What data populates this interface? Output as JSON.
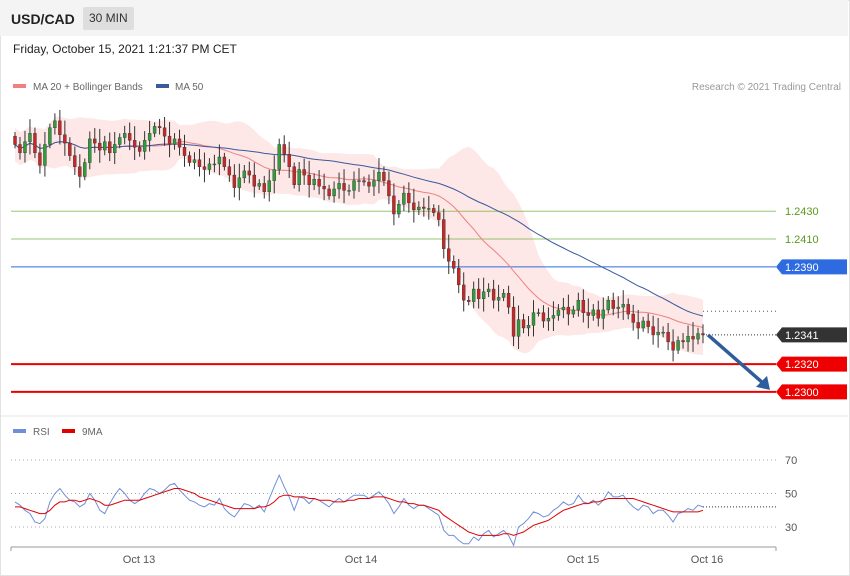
{
  "header": {
    "symbol": "USD/CAD",
    "timeframe": "30 MIN",
    "timestamp": "Friday, October 15, 2021 1:21:37 PM CET",
    "credit": "Research © 2021 Trading Central"
  },
  "legend": {
    "ma20": {
      "label": "MA 20 + Bollinger Bands",
      "color": "#f08080"
    },
    "ma50": {
      "label": "MA 50",
      "color": "#3a5a9c"
    },
    "rsi": {
      "label": "RSI",
      "color": "#6f8fd8"
    },
    "ma9": {
      "label": "9MA",
      "color": "#e00000"
    }
  },
  "chart_data": {
    "type": "candlestick",
    "price_range": [
      1.2287,
      1.251
    ],
    "x_labels": [
      "Oct 13",
      "Oct 14",
      "Oct 15",
      "Oct 16"
    ],
    "levels": [
      {
        "value": "1.2430",
        "price": 1.243,
        "kind": "resistance",
        "color": "#77b242"
      },
      {
        "value": "1.2410",
        "price": 1.241,
        "kind": "resistance",
        "color": "#77b242"
      },
      {
        "value": "1.2390",
        "price": 1.239,
        "kind": "pivot",
        "color": "#2f6be0"
      },
      {
        "value": "1.2341",
        "price": 1.2341,
        "kind": "last",
        "color": "#333333"
      },
      {
        "value": "1.2320",
        "price": 1.232,
        "kind": "target",
        "color": "#ee0000"
      },
      {
        "value": "1.2300",
        "price": 1.23,
        "kind": "target",
        "color": "#ee0000"
      }
    ],
    "closes": [
      1.2478,
      1.2472,
      1.248,
      1.2486,
      1.2472,
      1.2463,
      1.2478,
      1.249,
      1.2495,
      1.2485,
      1.2479,
      1.247,
      1.2462,
      1.2455,
      1.2465,
      1.2482,
      1.2479,
      1.2474,
      1.248,
      1.2472,
      1.2478,
      1.2483,
      1.2486,
      1.2481,
      1.2476,
      1.2473,
      1.2481,
      1.2486,
      1.2491,
      1.249,
      1.2484,
      1.2478,
      1.2482,
      1.2476,
      1.247,
      1.2465,
      1.2467,
      1.2462,
      1.246,
      1.2464,
      1.2464,
      1.2469,
      1.2462,
      1.2456,
      1.2447,
      1.2454,
      1.2459,
      1.2456,
      1.2448,
      1.245,
      1.2444,
      1.2452,
      1.246,
      1.2478,
      1.2471,
      1.2462,
      1.2449,
      1.246,
      1.2456,
      1.2449,
      1.2453,
      1.2448,
      1.2446,
      1.2441,
      1.2446,
      1.245,
      1.2445,
      1.2445,
      1.2452,
      1.2452,
      1.2451,
      1.2448,
      1.2452,
      1.2458,
      1.2452,
      1.2441,
      1.2428,
      1.2435,
      1.2443,
      1.2436,
      1.2431,
      1.2433,
      1.2432,
      1.2432,
      1.2429,
      1.2424,
      1.2403,
      1.2394,
      1.2389,
      1.2377,
      1.2366,
      1.2365,
      1.2374,
      1.2367,
      1.2372,
      1.2374,
      1.2366,
      1.2368,
      1.2371,
      1.2361,
      1.234,
      1.2352,
      1.2346,
      1.2348,
      1.2357,
      1.2357,
      1.2351,
      1.2353,
      1.2355,
      1.2359,
      1.2361,
      1.2356,
      1.2359,
      1.2366,
      1.2357,
      1.2355,
      1.2359,
      1.2353,
      1.2359,
      1.2366,
      1.236,
      1.2361,
      1.2363,
      1.2356,
      1.235,
      1.2346,
      1.2351,
      1.2347,
      1.2341,
      1.2343,
      1.2343,
      1.2336,
      1.233,
      1.2337,
      1.2336,
      1.234,
      1.2338,
      1.2342,
      1.2341
    ],
    "rsi": {
      "range": [
        10,
        80
      ],
      "ticks": [
        "70",
        "50",
        "30"
      ],
      "tick_values": [
        70,
        50,
        30
      ],
      "values": [
        45,
        43,
        40,
        38,
        33,
        32,
        35,
        45,
        50,
        53,
        49,
        46,
        45,
        42,
        44,
        50,
        46,
        40,
        38,
        44,
        49,
        53,
        50,
        46,
        44,
        46,
        50,
        53,
        52,
        50,
        52,
        55,
        56,
        52,
        49,
        46,
        45,
        43,
        42,
        44,
        43,
        47,
        41,
        38,
        36,
        40,
        44,
        43,
        41,
        43,
        39,
        47,
        54,
        61,
        54,
        48,
        40,
        48,
        47,
        44,
        47,
        46,
        44,
        42,
        45,
        47,
        45,
        47,
        49,
        49,
        49,
        47,
        49,
        51,
        48,
        44,
        38,
        42,
        47,
        43,
        41,
        43,
        43,
        41,
        39,
        37,
        28,
        25,
        25,
        22,
        20,
        20,
        24,
        22,
        26,
        28,
        24,
        26,
        28,
        25,
        19,
        30,
        32,
        35,
        39,
        38,
        36,
        37,
        40,
        42,
        45,
        43,
        44,
        49,
        45,
        44,
        46,
        43,
        46,
        51,
        48,
        48,
        49,
        45,
        42,
        40,
        43,
        42,
        38,
        40,
        40,
        37,
        33,
        38,
        39,
        41,
        40,
        43,
        42
      ],
      "ma9": [
        42,
        42,
        41,
        40,
        39,
        38,
        38,
        40,
        43,
        45,
        45,
        46,
        46,
        45,
        46,
        47,
        46,
        45,
        43,
        43,
        44,
        45,
        46,
        46,
        46,
        46,
        47,
        48,
        49,
        50,
        51,
        52,
        53,
        53,
        52,
        51,
        50,
        48,
        47,
        46,
        45,
        44,
        43,
        42,
        41,
        41,
        41,
        41,
        41,
        42,
        42,
        43,
        45,
        48,
        49,
        49,
        48,
        48,
        48,
        47,
        47,
        46,
        46,
        46,
        45,
        45,
        45,
        46,
        46,
        47,
        47,
        47,
        48,
        48,
        48,
        47,
        46,
        45,
        45,
        44,
        44,
        43,
        43,
        42,
        41,
        40,
        37,
        35,
        33,
        31,
        29,
        27,
        26,
        25,
        25,
        25,
        25,
        25,
        26,
        26,
        25,
        26,
        27,
        29,
        31,
        32,
        33,
        34,
        36,
        38,
        40,
        41,
        42,
        43,
        44,
        44,
        45,
        45,
        46,
        47,
        47,
        47,
        47,
        47,
        47,
        46,
        45,
        44,
        43,
        42,
        41,
        40,
        39,
        39,
        39,
        39,
        39,
        39,
        40
      ]
    }
  }
}
